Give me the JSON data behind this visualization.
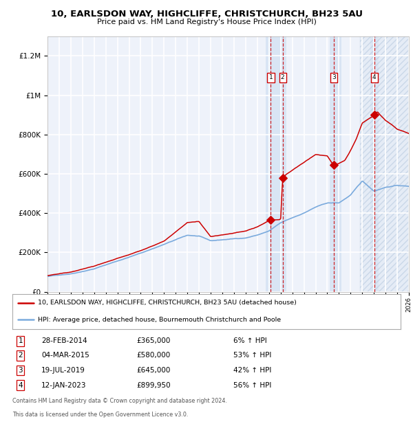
{
  "title1": "10, EARLSDON WAY, HIGHCLIFFE, CHRISTCHURCH, BH23 5AU",
  "title2": "Price paid vs. HM Land Registry's House Price Index (HPI)",
  "hpi_line_color": "#7aaadd",
  "price_line_color": "#cc0000",
  "sale_marker_color": "#cc0000",
  "background_color": "#ffffff",
  "plot_bg_color": "#eef2fa",
  "grid_color": "#ffffff",
  "ylim": [
    0,
    1300000
  ],
  "yticks": [
    0,
    200000,
    400000,
    600000,
    800000,
    1000000,
    1200000
  ],
  "ytick_labels": [
    "£0",
    "£200K",
    "£400K",
    "£600K",
    "£800K",
    "£1M",
    "£1.2M"
  ],
  "sales": [
    {
      "label": "1",
      "price": 365000,
      "x_year": 2014.16
    },
    {
      "label": "2",
      "price": 580000,
      "x_year": 2015.17
    },
    {
      "label": "3",
      "price": 645000,
      "x_year": 2019.55
    },
    {
      "label": "4",
      "price": 899950,
      "x_year": 2023.03
    }
  ],
  "legend_price_label": "10, EARLSDON WAY, HIGHCLIFFE, CHRISTCHURCH, BH23 5AU (detached house)",
  "legend_hpi_label": "HPI: Average price, detached house, Bournemouth Christchurch and Poole",
  "table_rows": [
    {
      "num": "1",
      "date": "28-FEB-2014",
      "price": "£365,000",
      "pct": "6% ↑ HPI"
    },
    {
      "num": "2",
      "date": "04-MAR-2015",
      "price": "£580,000",
      "pct": "53% ↑ HPI"
    },
    {
      "num": "3",
      "date": "19-JUL-2019",
      "price": "£645,000",
      "pct": "42% ↑ HPI"
    },
    {
      "num": "4",
      "date": "12-JAN-2023",
      "price": "£899,950",
      "pct": "56% ↑ HPI"
    }
  ],
  "footnote1": "Contains HM Land Registry data © Crown copyright and database right 2024.",
  "footnote2": "This data is licensed under the Open Government Licence v3.0.",
  "xmin": 1995,
  "xmax": 2026
}
